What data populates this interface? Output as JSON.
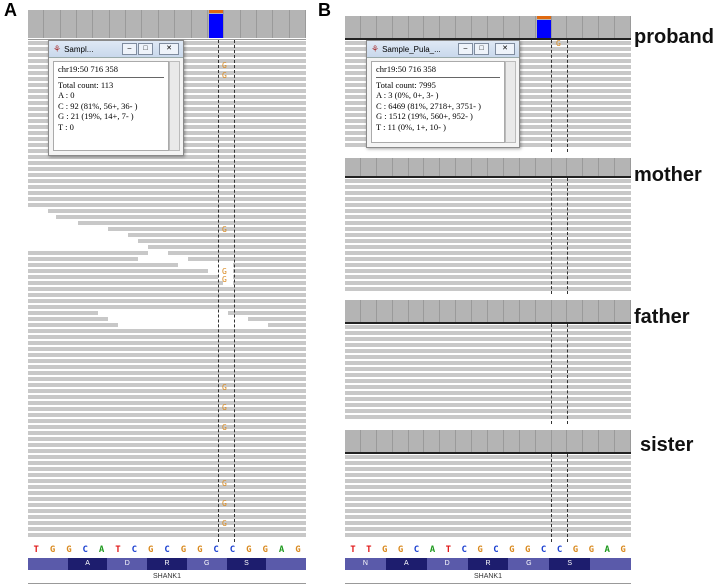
{
  "panels": {
    "a_letter": "A",
    "b_letter": "B"
  },
  "popup_a": {
    "title": "Sampl...",
    "locus": "chr19:50 716 358",
    "total": "Total count: 113",
    "lines": [
      "A : 0",
      "C : 92 (81%, 56+, 36- )",
      "G : 21 (19%, 14+, 7- )",
      "T : 0"
    ]
  },
  "popup_b": {
    "title": "Sample_Pula_...",
    "locus": "chr19:50 716 358",
    "total": "Total count: 7995",
    "lines": [
      "A : 3 (0%, 0+, 3- )",
      "C : 6469 (81%, 2718+, 3751- )",
      "G : 1512 (19%, 560+, 952- )",
      "T : 11 (0%, 1+, 10- )"
    ]
  },
  "labels": {
    "proband": "proband",
    "mother": "mother",
    "father": "father",
    "sister": "sister"
  },
  "sequence_a": [
    "T",
    "G",
    "G",
    "C",
    "A",
    "T",
    "C",
    "G",
    "C",
    "G",
    "G",
    "C",
    "C",
    "G",
    "G",
    "A",
    "G"
  ],
  "sequence_b": [
    "T",
    "T",
    "G",
    "G",
    "C",
    "A",
    "T",
    "C",
    "G",
    "C",
    "G",
    "G",
    "C",
    "C",
    "G",
    "G",
    "A",
    "G"
  ],
  "aa_a": [
    "",
    "A",
    "D",
    "R",
    "G",
    "S",
    ""
  ],
  "aa_b": [
    "N",
    "A",
    "D",
    "R",
    "G",
    "S",
    ""
  ],
  "gene": "SHANK1",
  "variant_base": "G",
  "colors": {
    "A": "#1f9a1f",
    "C": "#1a3fd0",
    "G": "#d98a20",
    "T": "#e01818"
  }
}
